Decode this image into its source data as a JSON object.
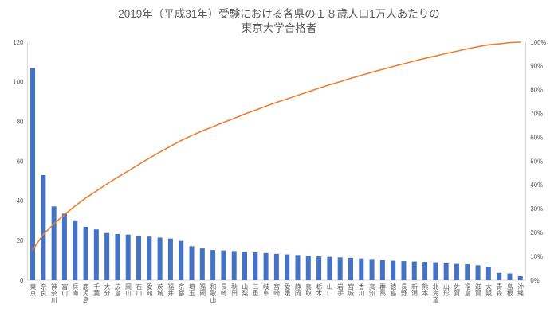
{
  "title": {
    "line1": "2019年（平成31年）受験における各県の１８歳人口1万人あたりの",
    "line2": "東京大学合格者"
  },
  "chart_data": {
    "type": "bar",
    "variant": "pareto-combo",
    "title": "2019年（平成31年）受験における各県の１８歳人口1万人あたりの東京大学合格者",
    "grid": false,
    "legend": "none",
    "categories": [
      "東京",
      "奈良",
      "神奈川",
      "富山",
      "兵庫",
      "鹿児島",
      "千葉",
      "大分",
      "広島",
      "岡山",
      "石川",
      "愛知",
      "茨城",
      "福井",
      "京都",
      "埼玉",
      "福岡",
      "和歌山",
      "長崎",
      "秋田",
      "山梨",
      "三重",
      "岐阜",
      "宮崎",
      "愛媛",
      "静岡",
      "鳥取",
      "栃木",
      "山口",
      "岩手",
      "宮城",
      "香川",
      "高知",
      "群馬",
      "徳島",
      "長野",
      "新潟",
      "熊本",
      "北海道",
      "山形",
      "佐賀",
      "福島",
      "滋賀",
      "大阪",
      "青森",
      "島根",
      "沖縄"
    ],
    "series": [
      {
        "kind": "bar",
        "axis": "left",
        "color": "#4472C4",
        "values": [
          107,
          53,
          37.2,
          33.6,
          30.2,
          26.9,
          25.6,
          23.8,
          23.3,
          23,
          22.5,
          22,
          21.5,
          21,
          19.8,
          17.1,
          16,
          15.2,
          15,
          14.7,
          14.3,
          14,
          13.7,
          13.3,
          13,
          12.7,
          12.3,
          12,
          11.8,
          11.5,
          11.3,
          11,
          10.7,
          10.2,
          9.8,
          9.6,
          9.4,
          9.2,
          9,
          8.5,
          8.2,
          8,
          7.5,
          6.8,
          3.7,
          3.4,
          2
        ]
      },
      {
        "kind": "line",
        "axis": "right",
        "color": "#ED7D31",
        "values": [
          12.8,
          19.2,
          23.6,
          27.6,
          31.2,
          34.5,
          37.5,
          40.4,
          43.2,
          45.9,
          48.6,
          51.3,
          53.8,
          56.3,
          58.7,
          60.8,
          62.7,
          64.5,
          66.3,
          68.0,
          69.8,
          71.4,
          73.1,
          74.7,
          76.2,
          77.7,
          79.2,
          80.7,
          82.1,
          83.4,
          84.8,
          86.1,
          87.4,
          88.6,
          89.8,
          90.9,
          92.1,
          93.2,
          94.2,
          95.3,
          96.2,
          97.2,
          98.1,
          98.9,
          99.3,
          99.8,
          100.0
        ]
      }
    ],
    "left_axis": {
      "min": 0,
      "max": 120,
      "tick_step": 20,
      "tick_labels": [
        "0",
        "20",
        "40",
        "60",
        "80",
        "100",
        "120"
      ]
    },
    "right_axis": {
      "min": 0,
      "max": 100,
      "tick_step": 10,
      "tick_labels": [
        "0%",
        "10%",
        "20%",
        "30%",
        "40%",
        "50%",
        "60%",
        "70%",
        "80%",
        "90%",
        "100%"
      ]
    }
  },
  "colors": {
    "bar": "#4472C4",
    "line": "#ED7D31",
    "text": "#595959",
    "axis_line": "#D9D9D9",
    "background": "#FFFFFF"
  }
}
